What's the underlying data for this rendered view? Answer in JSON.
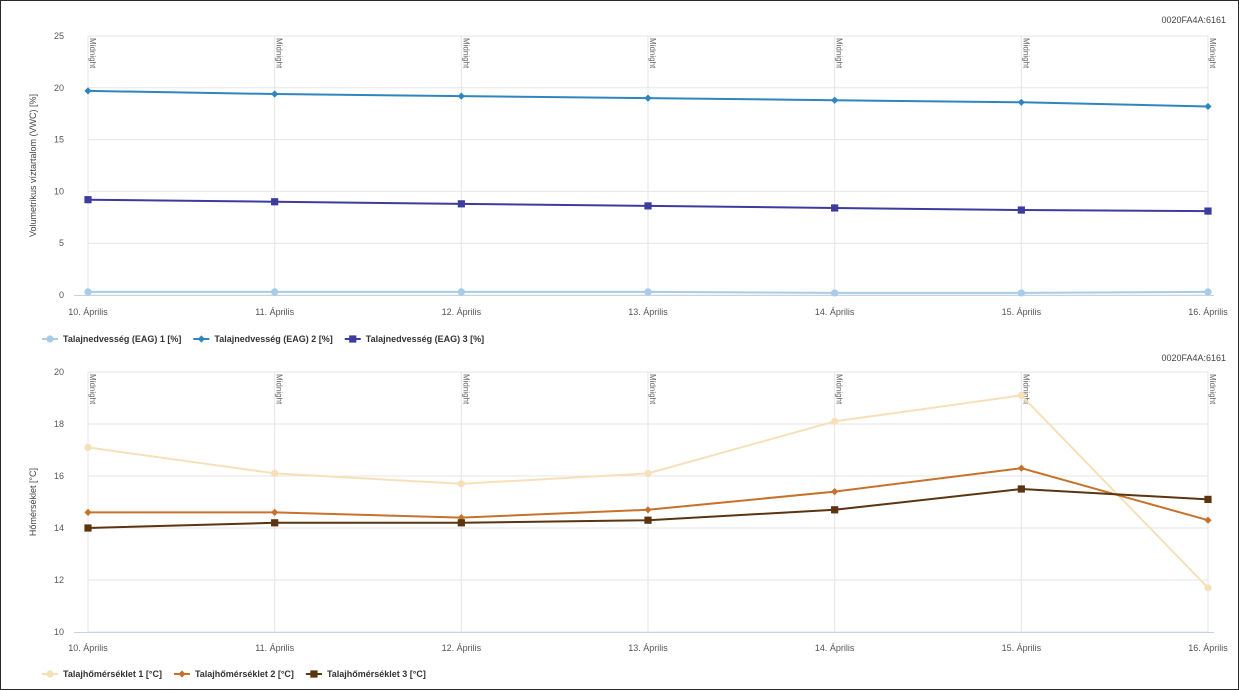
{
  "chart_data": [
    {
      "type": "line",
      "device_id": "0020FA4A:6161",
      "ylabel": "Volumetrikus víztartalom (VWC) [%]",
      "xlabel": "",
      "categories": [
        "10. Április",
        "11. Április",
        "12. Április",
        "13. Április",
        "14. Április",
        "15. Április",
        "16. Április"
      ],
      "plot_line_label": "Midnight",
      "ylim": [
        0,
        25
      ],
      "yticks": [
        "0",
        "5",
        "10",
        "15",
        "20",
        "25"
      ],
      "grid": true,
      "legend_position": "bottom-left",
      "series": [
        {
          "name": "Talajnedvesség (EAG) 1 [%]",
          "color": "#a8cbe8",
          "marker": "circle",
          "values": [
            0.3,
            0.3,
            0.3,
            0.3,
            0.2,
            0.2,
            0.3
          ]
        },
        {
          "name": "Talajnedvesség (EAG) 2 [%]",
          "color": "#2f86bf",
          "marker": "diamond",
          "values": [
            19.7,
            19.4,
            19.2,
            19.0,
            18.8,
            18.6,
            18.2
          ]
        },
        {
          "name": "Talajnedvesség (EAG) 3 [%]",
          "color": "#3c3c9e",
          "marker": "square",
          "values": [
            9.2,
            9.0,
            8.8,
            8.6,
            8.4,
            8.2,
            8.1
          ]
        }
      ]
    },
    {
      "type": "line",
      "device_id": "0020FA4A:6161",
      "ylabel": "Hőmérséklet [°C]",
      "xlabel": "",
      "categories": [
        "10. Április",
        "11. Április",
        "12. Április",
        "13. Április",
        "14. Április",
        "15. Április",
        "16. Április"
      ],
      "plot_line_label": "Midnight",
      "ylim": [
        10,
        20
      ],
      "yticks": [
        "10",
        "12",
        "14",
        "16",
        "18",
        "20"
      ],
      "grid": true,
      "legend_position": "bottom-left",
      "series": [
        {
          "name": "Talajhőmérséklet 1 [°C]",
          "color": "#f6e0ba",
          "marker": "circle",
          "values": [
            17.1,
            16.1,
            15.7,
            16.1,
            18.1,
            19.1,
            11.7
          ]
        },
        {
          "name": "Talajhőmérséklet 2 [°C]",
          "color": "#c8712b",
          "marker": "diamond",
          "values": [
            14.6,
            14.6,
            14.4,
            14.7,
            15.4,
            16.3,
            14.3
          ]
        },
        {
          "name": "Talajhőmérséklet 3 [°C]",
          "color": "#5b3410",
          "marker": "square",
          "values": [
            14.0,
            14.2,
            14.2,
            14.3,
            14.7,
            15.5,
            15.1
          ]
        }
      ]
    }
  ]
}
